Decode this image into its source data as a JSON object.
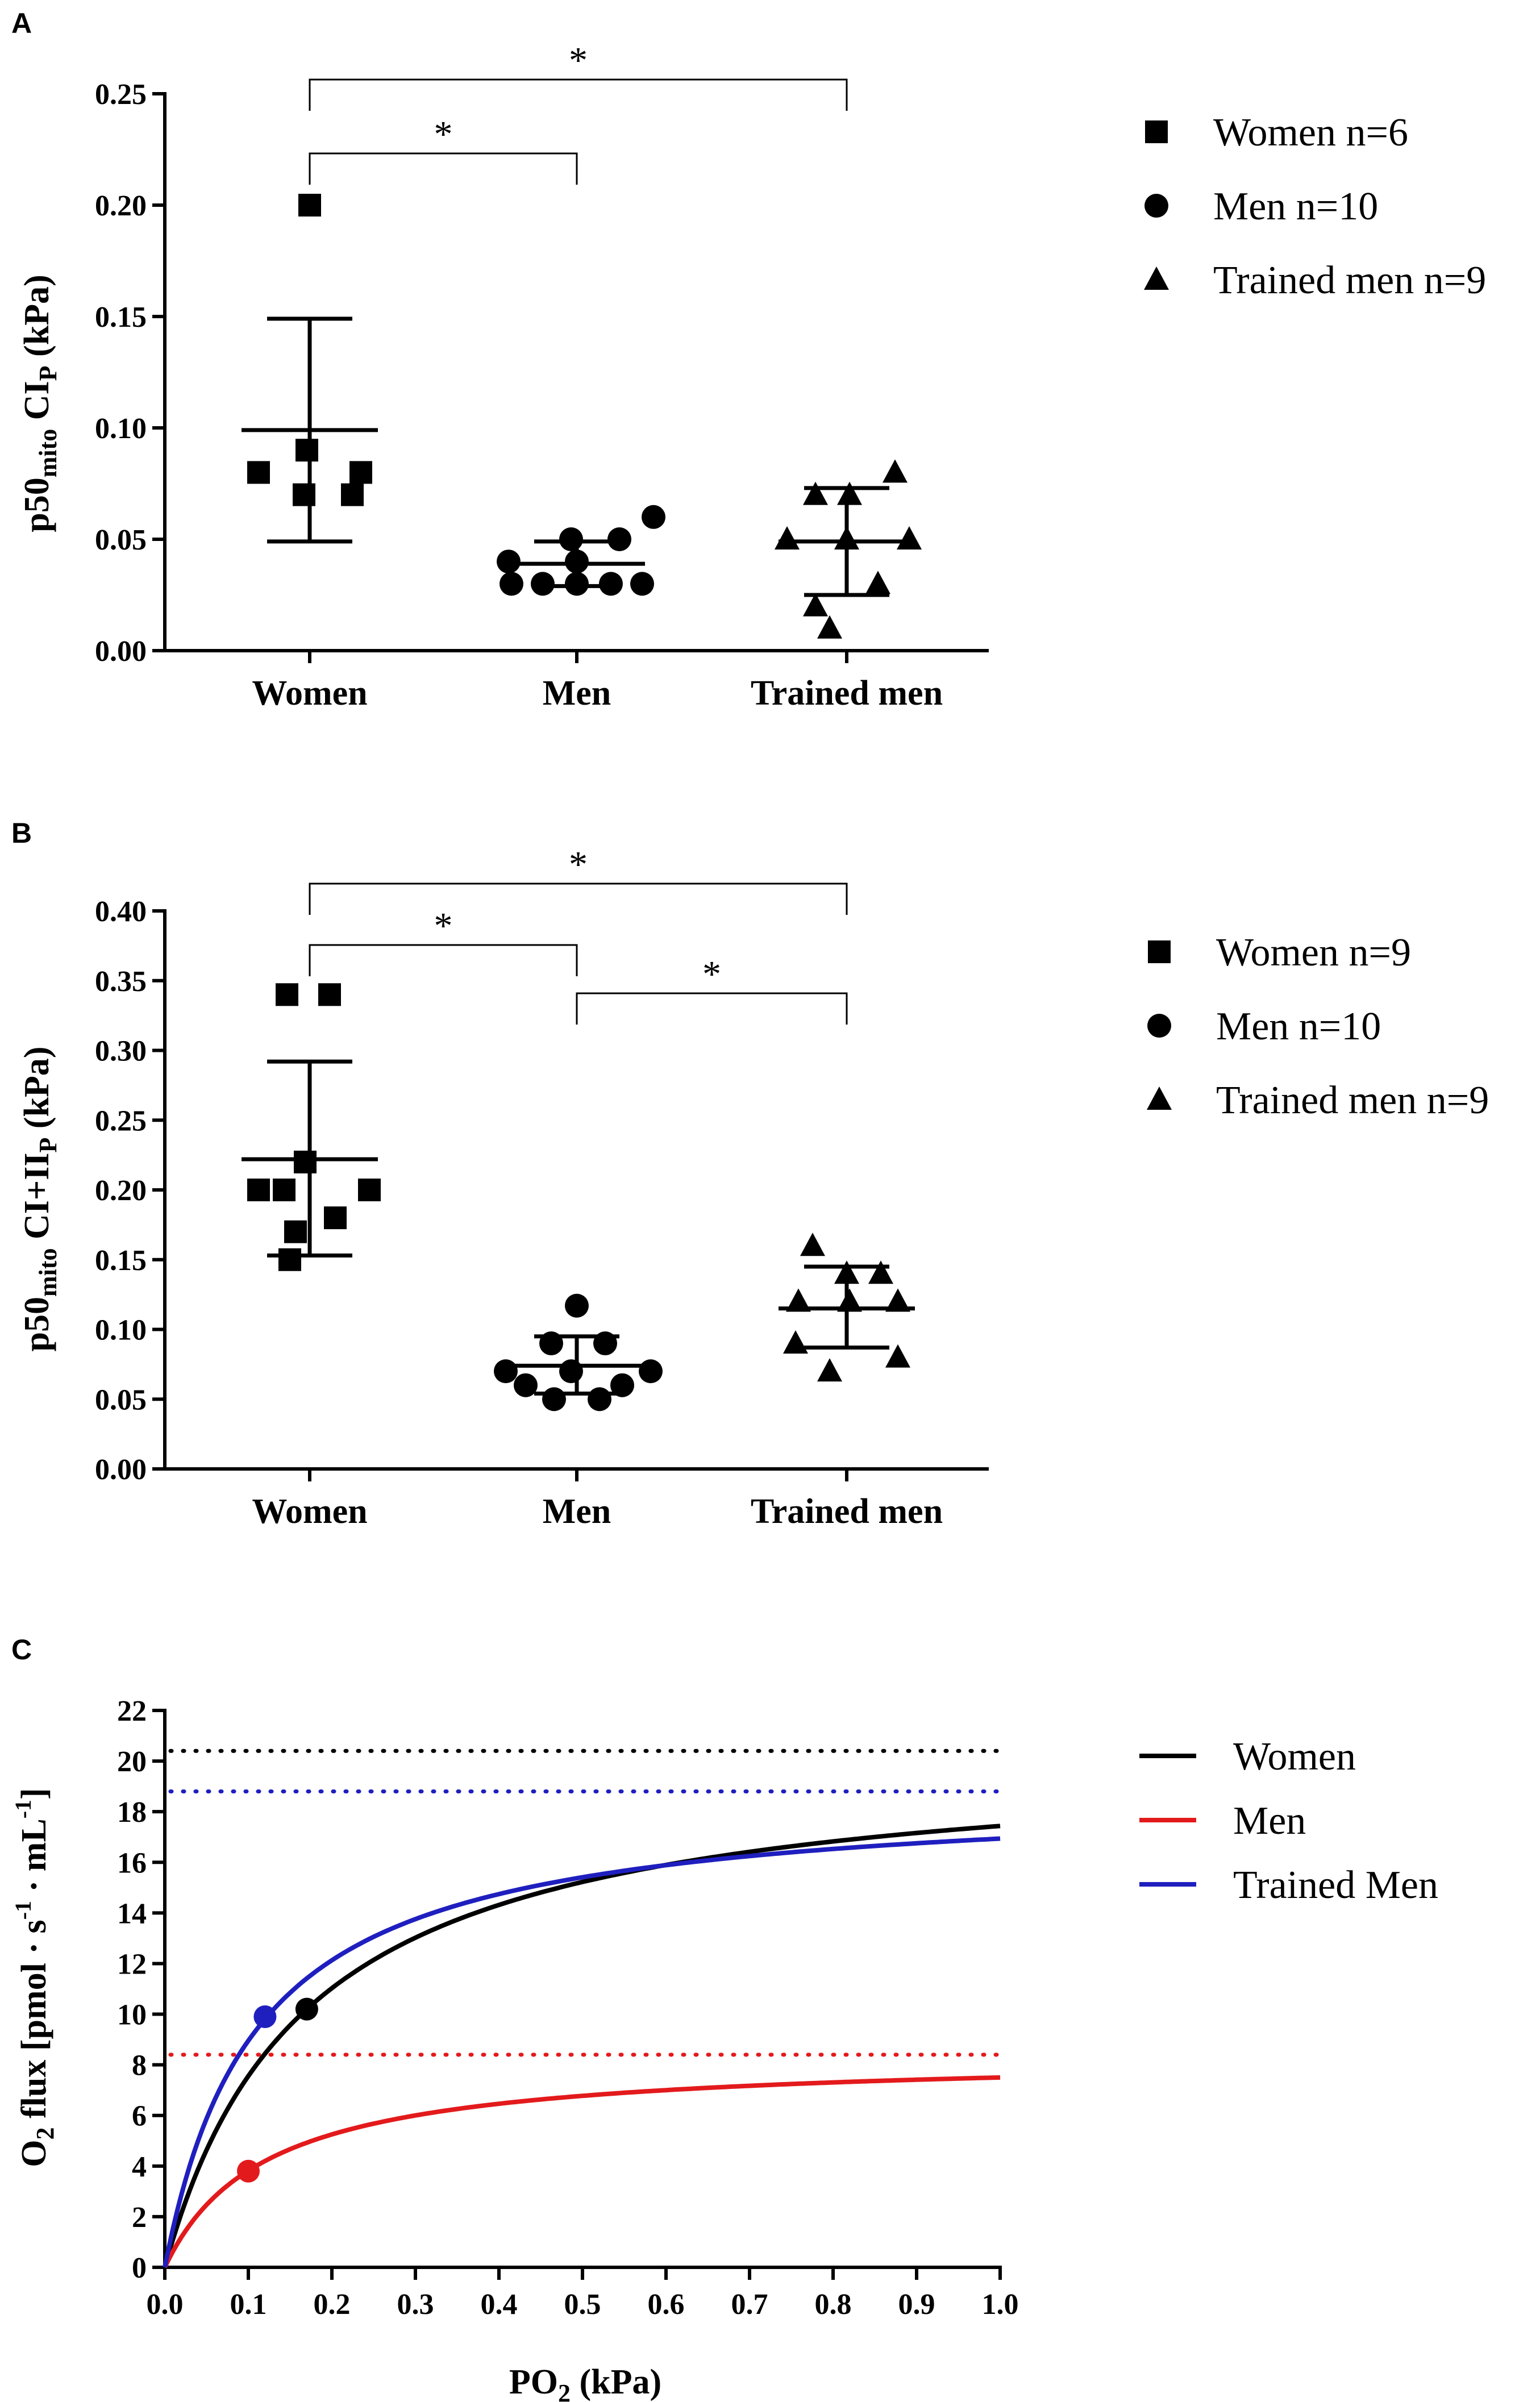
{
  "panels": {
    "A": {
      "letter": "A",
      "chart_data": {
        "type": "scatter",
        "ylabel": "p50",
        "ylabel_sub1": "mito",
        "ylabel_mid": " CI",
        "ylabel_sub2": "P",
        "ylabel_tail": " (kPa)",
        "ylim": [
          0,
          0.25
        ],
        "yticks": [
          "0.00",
          "0.05",
          "0.10",
          "0.15",
          "0.20",
          "0.25"
        ],
        "categories": [
          "Women",
          "Men",
          "Trained men"
        ],
        "series": [
          {
            "name": "Women",
            "marker": "square",
            "values": [
              0.08,
              0.07,
              0.07,
              0.08,
              0.09,
              0.2
            ],
            "mean": 0.099,
            "sd_low": 0.049,
            "sd_high": 0.149
          },
          {
            "name": "Men",
            "marker": "circle",
            "values": [
              0.06,
              0.05,
              0.05,
              0.04,
              0.04,
              0.03,
              0.03,
              0.03,
              0.03,
              0.03
            ],
            "mean": 0.039,
            "sd_low": 0.029,
            "sd_high": 0.049
          },
          {
            "name": "Trained men",
            "marker": "triangle",
            "values": [
              0.08,
              0.07,
              0.07,
              0.05,
              0.05,
              0.05,
              0.03,
              0.02,
              0.01
            ],
            "mean": 0.049,
            "sd_low": 0.025,
            "sd_high": 0.073
          }
        ],
        "significance": [
          {
            "from": 0,
            "to": 1,
            "label": "*"
          },
          {
            "from": 0,
            "to": 2,
            "label": "*"
          }
        ],
        "legend": [
          {
            "marker": "square",
            "label": "Women n=6"
          },
          {
            "marker": "circle",
            "label": "Men n=10"
          },
          {
            "marker": "triangle",
            "label": "Trained men n=9"
          }
        ]
      }
    },
    "B": {
      "letter": "B",
      "chart_data": {
        "type": "scatter",
        "ylabel": "p50",
        "ylabel_sub1": "mito",
        "ylabel_mid": " CI+II",
        "ylabel_sub2": "P",
        "ylabel_tail": " (kPa)",
        "ylim": [
          0,
          0.4
        ],
        "yticks": [
          "0.00",
          "0.05",
          "0.10",
          "0.15",
          "0.20",
          "0.25",
          "0.30",
          "0.35",
          "0.40"
        ],
        "categories": [
          "Women",
          "Men",
          "Trained men"
        ],
        "series": [
          {
            "name": "Women",
            "marker": "square",
            "values": [
              0.34,
              0.34,
              0.22,
              0.2,
              0.2,
              0.2,
              0.18,
              0.17,
              0.15
            ],
            "mean": 0.222,
            "sd_low": 0.153,
            "sd_high": 0.292
          },
          {
            "name": "Men",
            "marker": "circle",
            "values": [
              0.117,
              0.09,
              0.09,
              0.07,
              0.07,
              0.07,
              0.06,
              0.06,
              0.05,
              0.05
            ],
            "mean": 0.074,
            "sd_low": 0.054,
            "sd_high": 0.095
          },
          {
            "name": "Trained men",
            "marker": "triangle",
            "values": [
              0.16,
              0.14,
              0.14,
              0.12,
              0.12,
              0.12,
              0.09,
              0.08,
              0.07
            ],
            "mean": 0.115,
            "sd_low": 0.087,
            "sd_high": 0.145
          }
        ],
        "significance": [
          {
            "from": 0,
            "to": 1,
            "label": "*"
          },
          {
            "from": 0,
            "to": 2,
            "label": "*"
          },
          {
            "from": 1,
            "to": 2,
            "label": "*"
          }
        ],
        "legend": [
          {
            "marker": "square",
            "label": "Women n=9"
          },
          {
            "marker": "circle",
            "label": "Men n=10"
          },
          {
            "marker": "triangle",
            "label": "Trained men n=9"
          }
        ]
      }
    },
    "C": {
      "letter": "C",
      "chart_data": {
        "type": "line",
        "ylabel_main": "O",
        "ylabel_sub": "2",
        "ylabel_rest": " flux [pmol · s",
        "ylabel_sup1": "-1",
        "ylabel_mid": " · mL",
        "ylabel_sup2": "-1",
        "ylabel_end": "]",
        "xlabel_main": "PO",
        "xlabel_sub": "2",
        "xlabel_rest": " (kPa)",
        "xlim": [
          0,
          1.0
        ],
        "ylim": [
          0,
          22
        ],
        "xticks": [
          "0.0",
          "0.1",
          "0.2",
          "0.3",
          "0.4",
          "0.5",
          "0.6",
          "0.7",
          "0.8",
          "0.9",
          "1.0"
        ],
        "yticks": [
          "0",
          "2",
          "4",
          "6",
          "8",
          "10",
          "12",
          "14",
          "16",
          "18",
          "20",
          "22"
        ],
        "series": [
          {
            "name": "Women",
            "color": "#000000",
            "vmax": 20.4,
            "p50": 0.17,
            "point": [
              0.17,
              10.2
            ]
          },
          {
            "name": "Men",
            "color": "#e31a1c",
            "vmax": 8.4,
            "p50": 0.12,
            "point": [
              0.1,
              3.8
            ]
          },
          {
            "name": "Trained Men",
            "color": "#1f1fbf",
            "vmax": 18.8,
            "p50": 0.11,
            "point": [
              0.12,
              9.9
            ]
          }
        ],
        "legend": [
          "Women",
          "Men",
          "Trained Men"
        ]
      }
    }
  }
}
